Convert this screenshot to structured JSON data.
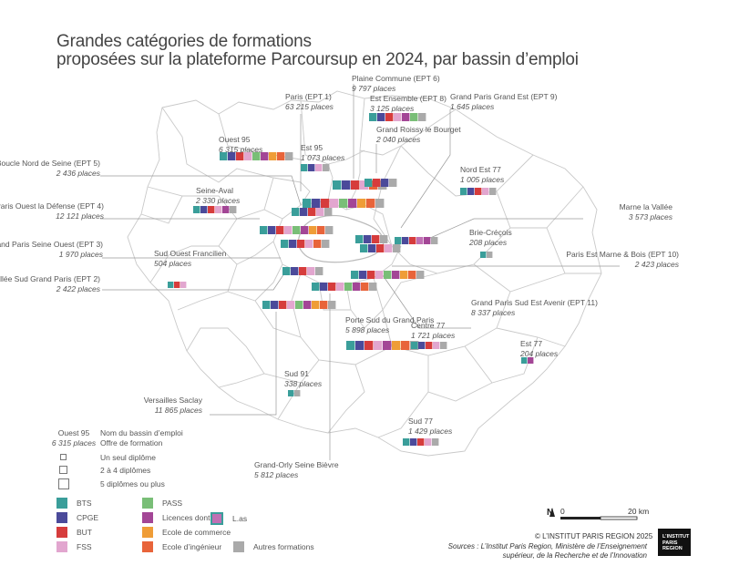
{
  "title": {
    "line1": "Grandes catégories de formations",
    "line2": "proposées sur la plateforme Parcoursup en 2024, par bassin d’emploi"
  },
  "categories": [
    {
      "key": "bts",
      "label": "BTS",
      "color": "#3a9e9a"
    },
    {
      "key": "cpge",
      "label": "CPGE",
      "color": "#4b4a9a"
    },
    {
      "key": "but",
      "label": "BUT",
      "color": "#d63c3c"
    },
    {
      "key": "fss",
      "label": "FSS",
      "color": "#e2a6cf"
    },
    {
      "key": "pass",
      "label": "PASS",
      "color": "#79be77"
    },
    {
      "key": "licences",
      "label": "Licences dont",
      "color": "#a34696"
    },
    {
      "key": "commerce",
      "label": "Ecole de commerce",
      "color": "#ef9d37"
    },
    {
      "key": "ingenieur",
      "label": "Ecole d’ingénieur",
      "color": "#e8643a"
    },
    {
      "key": "autres",
      "label": "Autres formations",
      "color": "#aaaaaa"
    },
    {
      "key": "las",
      "label": "L.as",
      "color": "#c070b4"
    }
  ],
  "basins": [
    {
      "name": "Paris (EPT 1)",
      "places": "63 215 places",
      "cells": [
        "bts",
        "cpge",
        "but",
        "fss",
        "pass",
        "licences",
        "commerce",
        "ingenieur",
        "autres"
      ]
    },
    {
      "name": "Plaine Commune (EPT 6)",
      "places": "9 797 places",
      "cells": [
        "bts",
        "cpge",
        "but",
        "fss",
        "ingenieur",
        "autres"
      ]
    },
    {
      "name": "Est Ensemble (EPT 8)",
      "places": "3 125 places",
      "cells": [
        "bts",
        "cpge",
        "but",
        "fss",
        "licences",
        "pass",
        "autres"
      ]
    },
    {
      "name": "Grand Paris Grand Est (EPT 9)",
      "places": "1 645 places",
      "cells": [
        "bts",
        "cpge",
        "but",
        "autres"
      ]
    },
    {
      "name": "Grand Roissy le Bourget",
      "places": "2 040 places",
      "cells": [
        "bts",
        "but",
        "cpge",
        "autres"
      ]
    },
    {
      "name": "Ouest 95",
      "places": "6 315 places",
      "cells": [
        "bts",
        "cpge",
        "but",
        "fss",
        "pass",
        "licences",
        "commerce",
        "ingenieur",
        "autres"
      ]
    },
    {
      "name": "Est 95",
      "places": "1 073 places",
      "cells": [
        "bts",
        "cpge",
        "fss",
        "autres"
      ]
    },
    {
      "name": "Nord Est 77",
      "places": "1 005 places",
      "cells": [
        "bts",
        "cpge",
        "but",
        "fss",
        "autres"
      ]
    },
    {
      "name": "Boucle Nord de Seine (EPT 5)",
      "places": "2 436 places",
      "cells": [
        "bts",
        "cpge",
        "but",
        "fss",
        "autres"
      ]
    },
    {
      "name": "Seine-Aval",
      "places": "2 330 places",
      "cells": [
        "bts",
        "cpge",
        "but",
        "fss",
        "licences",
        "autres"
      ]
    },
    {
      "name": "Paris Ouest la Défense (EPT 4)",
      "places": "12 121 places",
      "cells": [
        "bts",
        "cpge",
        "but",
        "fss",
        "pass",
        "licences",
        "commerce",
        "ingenieur",
        "autres"
      ]
    },
    {
      "name": "Marne la Vallée",
      "places": "3 573 places",
      "cells": [
        "bts",
        "cpge",
        "but",
        "las",
        "licences",
        "autres"
      ]
    },
    {
      "name": "Brie-Créçois",
      "places": "208 places",
      "cells": [
        "bts",
        "autres"
      ]
    },
    {
      "name": "Grand Paris Seine Ouest (EPT 3)",
      "places": "1 970 places",
      "cells": [
        "bts",
        "cpge",
        "but",
        "fss",
        "ingenieur",
        "autres"
      ]
    },
    {
      "name": "Sud Ouest Francilien",
      "places": "504 places",
      "cells": [
        "bts",
        "but",
        "fss"
      ]
    },
    {
      "name": "Paris Est Marne & Bois (EPT 10)",
      "places": "2 423 places",
      "cells": [
        "bts",
        "cpge",
        "but",
        "fss",
        "autres"
      ]
    },
    {
      "name": "Vallée Sud Grand Paris (EPT 2)",
      "places": "2 422 places",
      "cells": [
        "bts",
        "cpge",
        "but",
        "fss",
        "autres"
      ]
    },
    {
      "name": "Grand Paris Sud Est Avenir (EPT 11)",
      "places": "8 337 places",
      "cells": [
        "bts",
        "cpge",
        "but",
        "fss",
        "pass",
        "licences",
        "commerce",
        "ingenieur",
        "autres"
      ]
    },
    {
      "name": "Porte Sud du Grand Paris",
      "places": "5 898 places",
      "cells": [
        "bts",
        "cpge",
        "but",
        "fss",
        "licences",
        "commerce",
        "ingenieur",
        "autres"
      ]
    },
    {
      "name": "Centre 77",
      "places": "1 721 places",
      "cells": [
        "bts",
        "cpge",
        "but",
        "fss",
        "autres"
      ]
    },
    {
      "name": "Est 77",
      "places": "204 places",
      "cells": [
        "bts",
        "licences"
      ]
    },
    {
      "name": "Sud 91",
      "places": "338 places",
      "cells": [
        "bts",
        "autres"
      ]
    },
    {
      "name": "Versailles Saclay",
      "places": "11 865 places",
      "cells": [
        "bts",
        "cpge",
        "but",
        "fss",
        "pass",
        "licences",
        "commerce",
        "ingenieur",
        "autres"
      ]
    },
    {
      "name": "Sud 77",
      "places": "1 429 places",
      "cells": [
        "bts",
        "cpge",
        "but",
        "fss",
        "autres"
      ]
    },
    {
      "name": "Grand-Orly Seine Bièvre",
      "places": "5 812 places",
      "cells": [
        "bts",
        "cpge",
        "but",
        "fss",
        "pass",
        "licences",
        "ingenieur",
        "autres"
      ]
    }
  ],
  "legend": {
    "example_name": "Ouest 95",
    "example_places": "6 315 places",
    "name_desc": "Nom du bassin d’emploi",
    "offer_desc": "Offre de formation",
    "size_small": "Un seul diplôme",
    "size_medium": "2 à 4 diplômes",
    "size_large": "5 diplômes ou plus"
  },
  "scale": {
    "north": "N",
    "zero": "0",
    "max": "20 km"
  },
  "credit": "© L’INSTITUT PARIS REGION 2025",
  "source_line1": "Sources : L’Institut Paris Region, Ministère de l’Enseignement",
  "source_line2": "supérieur, de la Recherche et de l’Innovation",
  "logo": {
    "line1": "L’INSTITUT",
    "line2": "PARIS",
    "line3": "REGION"
  }
}
